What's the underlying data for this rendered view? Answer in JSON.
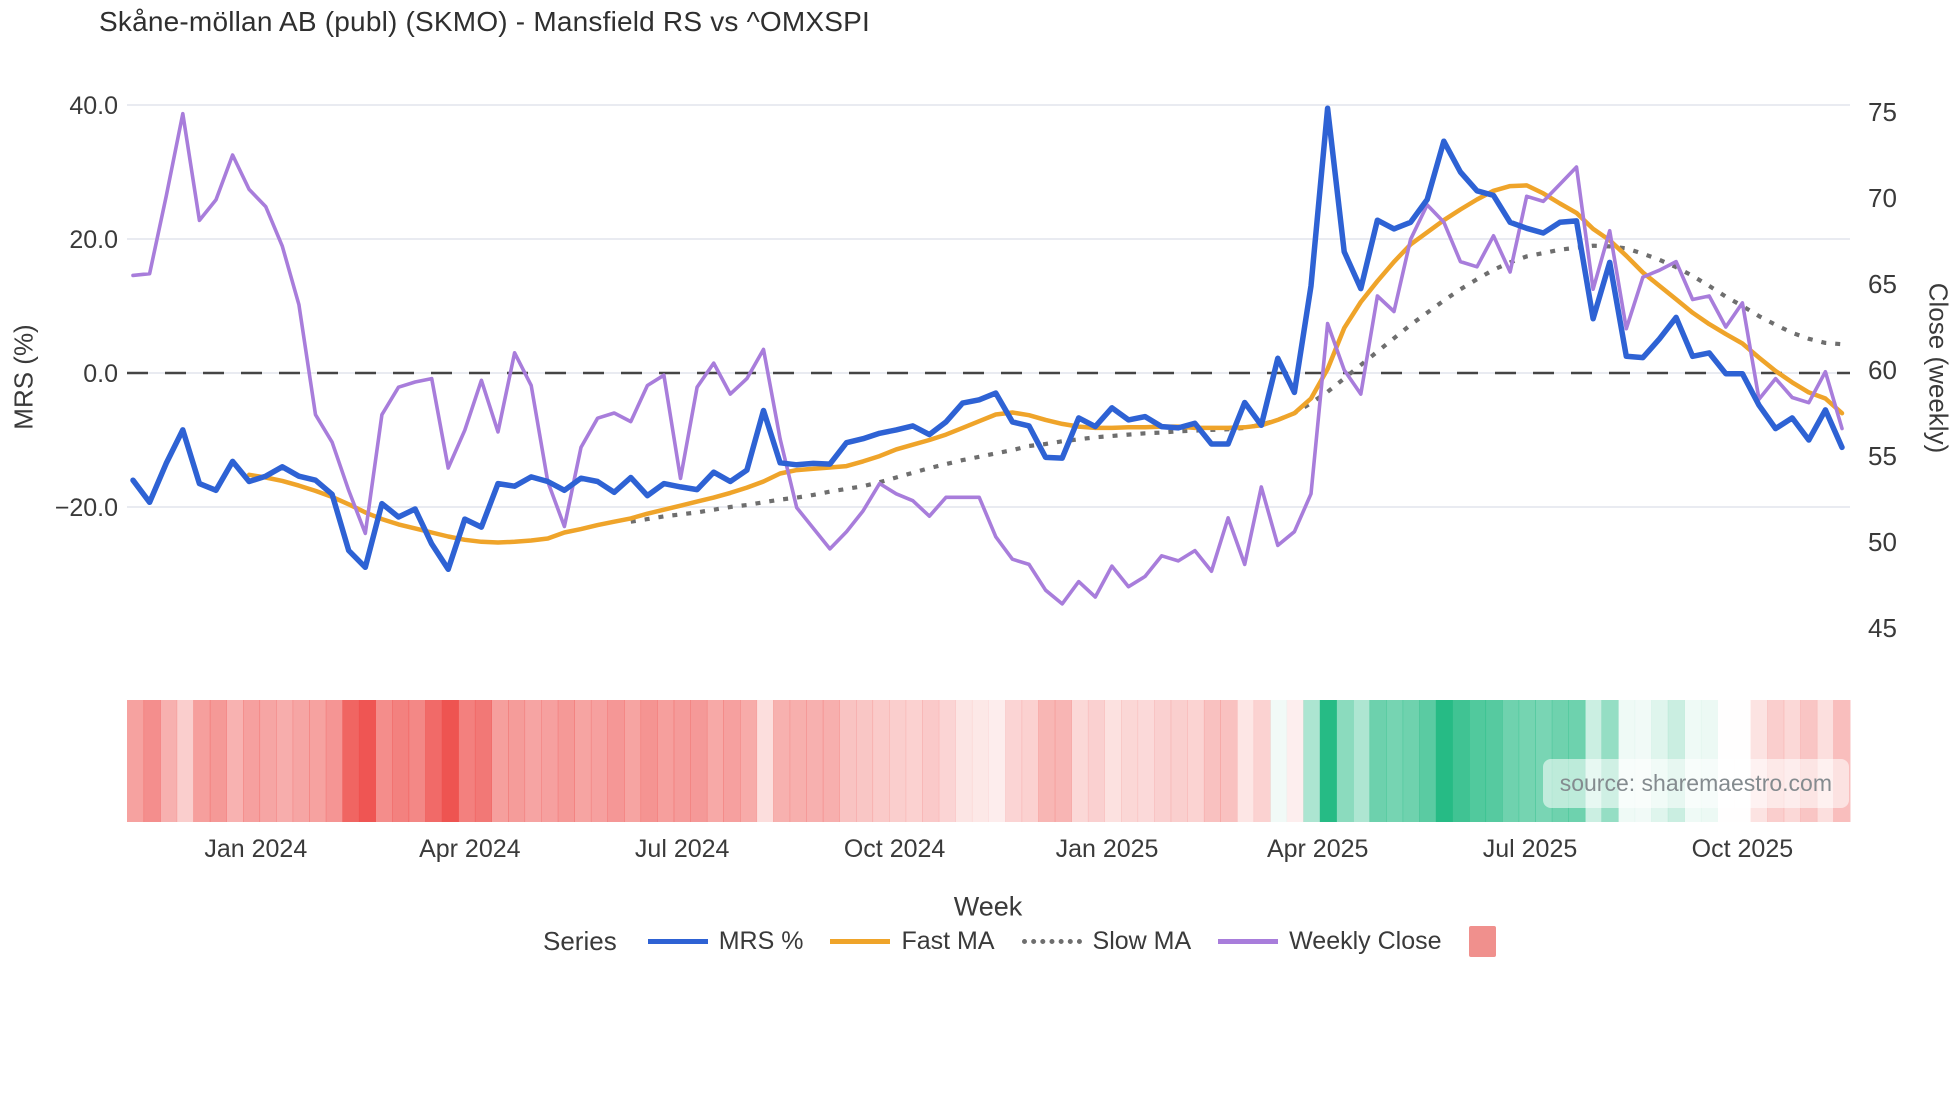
{
  "title": "Skåne-möllan AB (publ) (SKMO) - Mansfield RS vs ^OMXSPI",
  "watermark": "source: sharemaestro.com",
  "legend": {
    "title": "Series",
    "items": [
      {
        "label": "MRS %",
        "swatch": "line",
        "color": "#2e62d4"
      },
      {
        "label": "Fast MA",
        "swatch": "line",
        "color": "#efa42a"
      },
      {
        "label": "Slow MA",
        "swatch": "dotted-line",
        "color": "#6e6e6e"
      },
      {
        "label": "Weekly Close",
        "swatch": "line",
        "color": "#a87ddb"
      },
      {
        "label": "",
        "swatch": "square",
        "color": "#f0908d"
      }
    ]
  },
  "chart_data": {
    "type": "line",
    "title": "Skåne-möllan AB (publ) (SKMO) - Mansfield RS vs ^OMXSPI",
    "xlabel": "Week",
    "ylabel_left": "MRS (%)",
    "ylabel_right": "Close (weekly)",
    "x_count": 104,
    "x_ticks": [
      {
        "label": "Jan 2024",
        "week": 7.4
      },
      {
        "label": "Apr 2024",
        "week": 20.3
      },
      {
        "label": "Jul 2024",
        "week": 33.1
      },
      {
        "label": "Oct 2024",
        "week": 45.9
      },
      {
        "label": "Jan 2025",
        "week": 58.7
      },
      {
        "label": "Apr 2025",
        "week": 71.4
      },
      {
        "label": "Jul 2025",
        "week": 84.2
      },
      {
        "label": "Oct 2025",
        "week": 97.0
      }
    ],
    "y_left": {
      "tick_values": [
        40,
        20,
        0,
        -20
      ],
      "tick_labels": [
        "40.0",
        "20.0",
        "0.0",
        "−20.0"
      ],
      "zero_line_dashed": true
    },
    "y_right": {
      "tick_values": [
        75,
        70,
        65,
        60,
        55,
        50,
        45
      ],
      "tick_labels": [
        "75",
        "70",
        "65",
        "60",
        "55",
        "50",
        "45"
      ]
    },
    "grid": "horizontal-only",
    "legend_position": "bottom",
    "series": [
      {
        "name": "MRS %",
        "key": "mrs",
        "axis": "left",
        "color": "#2e62d4",
        "width": 5.5,
        "dash": "solid",
        "start_week": 0,
        "values": [
          -16.0,
          -19.3,
          -13.5,
          -8.5,
          -16.5,
          -17.5,
          -13.2,
          -16.2,
          -15.4,
          -14.0,
          -15.4,
          -16.0,
          -18.1,
          -26.5,
          -29.0,
          -19.5,
          -21.5,
          -20.3,
          -25.5,
          -29.3,
          -21.8,
          -23.0,
          -16.5,
          -16.9,
          -15.5,
          -16.2,
          -17.5,
          -15.7,
          -16.2,
          -17.8,
          -15.6,
          -18.3,
          -16.5,
          -17.0,
          -17.4,
          -14.8,
          -16.2,
          -14.5,
          -5.6,
          -13.4,
          -13.7,
          -13.5,
          -13.6,
          -10.4,
          -9.8,
          -9.0,
          -8.5,
          -7.9,
          -9.2,
          -7.3,
          -4.5,
          -4.0,
          -3.0,
          -7.3,
          -7.9,
          -12.6,
          -12.7,
          -6.7,
          -8.0,
          -5.2,
          -7.0,
          -6.5,
          -8.0,
          -8.2,
          -7.5,
          -10.6,
          -10.6,
          -4.4,
          -7.8,
          2.2,
          -2.9,
          13.0,
          39.5,
          18.1,
          12.6,
          22.8,
          21.5,
          22.5,
          25.9,
          34.6,
          30.0,
          27.2,
          26.5,
          22.5,
          21.6,
          20.9,
          22.5,
          22.7,
          8.1,
          16.5,
          2.5,
          2.3,
          5.1,
          8.3,
          2.5,
          3.0,
          -0.1,
          -0.1,
          -4.8,
          -8.3,
          -6.7,
          -10.0,
          -5.5,
          -11.1
        ]
      },
      {
        "name": "Fast MA",
        "key": "fast_ma",
        "axis": "left",
        "color": "#efa42a",
        "width": 4.5,
        "dash": "solid",
        "start_week": 7,
        "values": [
          -15.2,
          -15.6,
          -16.1,
          -16.8,
          -17.6,
          -18.5,
          -19.6,
          -20.8,
          -21.8,
          -22.6,
          -23.2,
          -23.8,
          -24.4,
          -24.9,
          -25.2,
          -25.3,
          -25.2,
          -25.0,
          -24.7,
          -23.8,
          -23.3,
          -22.7,
          -22.2,
          -21.7,
          -21.0,
          -20.4,
          -19.8,
          -19.2,
          -18.6,
          -17.9,
          -17.1,
          -16.2,
          -15.0,
          -14.5,
          -14.3,
          -14.1,
          -13.9,
          -13.2,
          -12.4,
          -11.4,
          -10.7,
          -10.0,
          -9.2,
          -8.2,
          -7.2,
          -6.2,
          -5.9,
          -6.3,
          -7.0,
          -7.6,
          -8.0,
          -8.2,
          -8.2,
          -8.1,
          -8.1,
          -8.0,
          -8.0,
          -8.2,
          -8.2,
          -8.2,
          -8.1,
          -7.8,
          -7.0,
          -6.0,
          -3.8,
          0.6,
          6.7,
          10.6,
          13.7,
          16.6,
          19.2,
          21.0,
          22.8,
          24.4,
          25.9,
          27.2,
          27.9,
          28.0,
          26.8,
          25.3,
          23.9,
          21.5,
          19.8,
          17.5,
          15.0,
          13.0,
          11.0,
          9.0,
          7.3,
          5.8,
          4.4,
          2.3,
          0.3,
          -1.4,
          -2.9,
          -3.8,
          -6.0
        ]
      },
      {
        "name": "Slow MA",
        "key": "slow_ma",
        "axis": "left",
        "color": "#6e6e6e",
        "width": 4.2,
        "dash": "dotted",
        "start_week": 30,
        "values": [
          -22.2,
          -21.8,
          -21.4,
          -21.1,
          -20.8,
          -20.4,
          -20.0,
          -19.7,
          -19.3,
          -18.9,
          -18.6,
          -18.2,
          -17.7,
          -17.3,
          -16.9,
          -16.3,
          -15.6,
          -14.9,
          -14.2,
          -13.6,
          -13.0,
          -12.5,
          -12.0,
          -11.5,
          -10.9,
          -10.6,
          -10.2,
          -9.9,
          -9.6,
          -9.4,
          -9.2,
          -9.0,
          -8.9,
          -8.7,
          -8.6,
          -8.5,
          -8.4,
          -8.2,
          -7.7,
          -7.0,
          -6.0,
          -4.5,
          -2.8,
          -0.8,
          1.2,
          3.2,
          5.2,
          7.2,
          9.0,
          10.8,
          12.5,
          14.0,
          15.4,
          16.5,
          17.4,
          17.9,
          18.4,
          18.7,
          19.0,
          18.9,
          18.6,
          17.8,
          16.9,
          15.8,
          14.5,
          13.0,
          11.4,
          10.0,
          8.5,
          7.2,
          6.0,
          5.1,
          4.5,
          4.3
        ]
      },
      {
        "name": "Weekly Close",
        "key": "weekly_close",
        "axis": "right",
        "color": "#a87ddb",
        "width": 3.6,
        "dash": "solid",
        "start_week": 0,
        "values": [
          65.5,
          65.6,
          70.1,
          74.9,
          68.7,
          69.9,
          72.5,
          70.5,
          69.5,
          67.2,
          63.8,
          57.4,
          55.8,
          53.0,
          50.5,
          57.4,
          59.0,
          59.3,
          59.5,
          54.3,
          56.5,
          59.4,
          56.4,
          61.0,
          59.1,
          53.5,
          50.9,
          55.5,
          57.2,
          57.5,
          57.0,
          59.1,
          59.7,
          53.7,
          59.0,
          60.4,
          58.6,
          59.5,
          61.2,
          56.0,
          52.0,
          50.8,
          49.6,
          50.6,
          51.8,
          53.4,
          52.8,
          52.4,
          51.5,
          52.6,
          52.6,
          52.6,
          50.3,
          49.0,
          48.7,
          47.2,
          46.4,
          47.7,
          46.8,
          48.6,
          47.4,
          48.0,
          49.2,
          48.9,
          49.5,
          48.3,
          51.4,
          48.7,
          53.2,
          49.8,
          50.6,
          52.8,
          62.7,
          60.0,
          58.6,
          64.3,
          63.4,
          67.6,
          69.6,
          68.6,
          66.3,
          66.0,
          67.8,
          65.7,
          70.1,
          69.8,
          70.8,
          71.8,
          64.7,
          68.1,
          62.4,
          65.4,
          65.8,
          66.3,
          64.1,
          64.3,
          62.5,
          63.9,
          58.3,
          59.5,
          58.4,
          58.1,
          59.9,
          56.6
        ]
      }
    ],
    "heatmap": {
      "description": "weekly band strip colored by MRS % value",
      "derived_from": "MRS %",
      "negative_color": "#ee504d",
      "positive_color": "#26bb85",
      "neutral_color": "#ffffff"
    }
  }
}
